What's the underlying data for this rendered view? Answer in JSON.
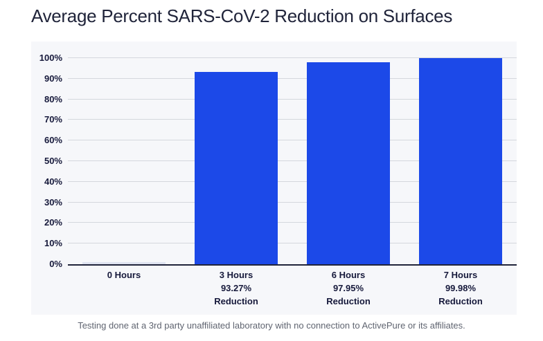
{
  "page": {
    "title": "Average Percent SARS-CoV-2 Reduction on Surfaces",
    "footnote": "Testing done at a 3rd party unaffiliated laboratory with no connection to ActivePure or its affiliates."
  },
  "chart_data": {
    "type": "bar",
    "title": "Average Percent SARS-CoV-2 Reduction on Surfaces",
    "categories": [
      "0 Hours",
      "3 Hours",
      "6 Hours",
      "7 Hours"
    ],
    "values": [
      0,
      93.27,
      97.95,
      99.98
    ],
    "bar_label_lines": [
      [
        "0 Hours"
      ],
      [
        "3 Hours",
        "93.27%",
        "Reduction"
      ],
      [
        "6 Hours",
        "97.95%",
        "Reduction"
      ],
      [
        "7 Hours",
        "99.98%",
        "Reduction"
      ]
    ],
    "xlabel": "",
    "ylabel": "",
    "ylim": [
      0,
      100
    ],
    "ytick_step": 10,
    "ytick_suffix": "%",
    "grid": true,
    "legend_position": "none",
    "colors": {
      "bar": "#1c49e8",
      "zero_value_bar": "#dfe3f0",
      "panel_background": "#f6f7fa",
      "gridline": "#d4d7dd",
      "axis_line": "#20243a",
      "axis_text": "#16193b",
      "title_text": "#20243a",
      "footnote_text": "#5f6470"
    }
  }
}
